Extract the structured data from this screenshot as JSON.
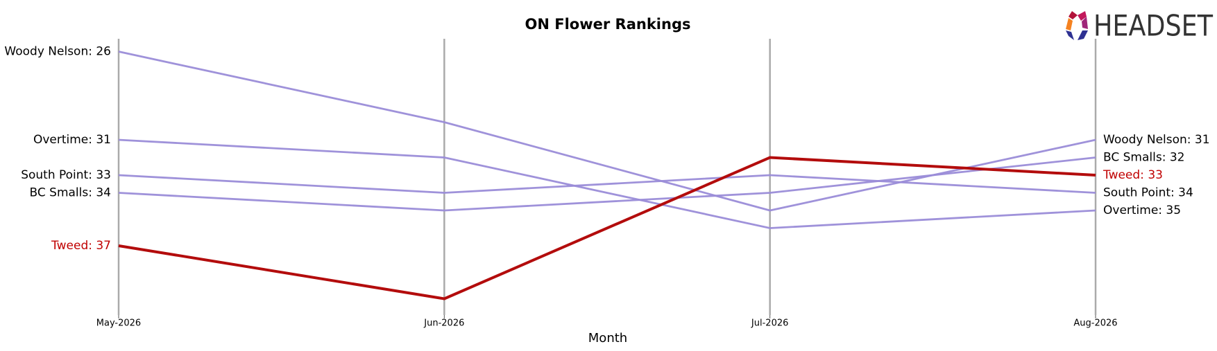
{
  "chart_data": {
    "type": "bump",
    "title": "ON Flower Rankings",
    "x_label": "Month",
    "logo": "HEADSET",
    "categories": [
      "May-2026",
      "Jun-2026",
      "Jul-2026",
      "Aug-2026"
    ],
    "ylim": [
      41,
      25
    ],
    "series": [
      {
        "color": "#9a8cd8",
        "label_color": "#000000",
        "values": [
          26,
          30,
          35,
          31
        ],
        "value_labels": [
          "Woody Nelson: 26",
          null,
          null,
          "Woody Nelson: 31"
        ]
      },
      {
        "color": "#9a8cd8",
        "label_color": "#000000",
        "values": [
          31,
          32,
          36,
          35
        ],
        "value_labels": [
          "Overtime: 31",
          null,
          null,
          "Overtime: 35"
        ]
      },
      {
        "color": "#9a8cd8",
        "label_color": "#000000",
        "values": [
          33,
          34,
          33,
          34
        ],
        "value_labels": [
          "South Point: 33",
          null,
          null,
          "South Point: 34"
        ]
      },
      {
        "color": "#9a8cd8",
        "label_color": "#000000",
        "values": [
          34,
          35,
          34,
          32
        ],
        "value_labels": [
          "BC Smalls: 34",
          null,
          null,
          "BC Smalls: 32"
        ]
      },
      {
        "color": "#b30c0c",
        "label_color": "#c00000",
        "values": [
          37,
          40,
          32,
          33
        ],
        "value_labels": [
          "Tweed: 37",
          null,
          null,
          "Tweed: 33"
        ]
      }
    ]
  }
}
